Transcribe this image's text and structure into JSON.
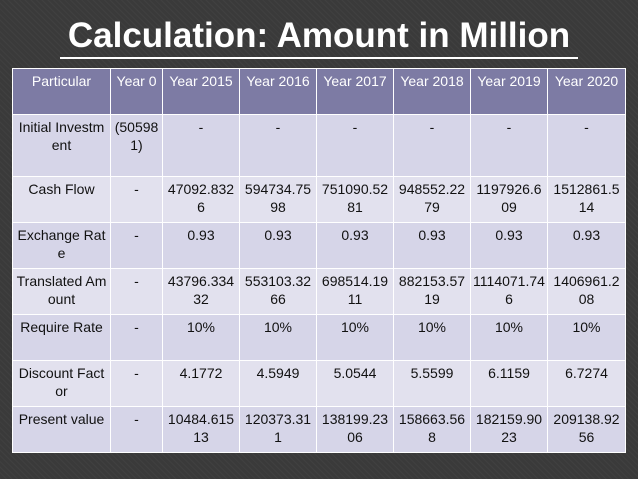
{
  "title": "Calculation: Amount in Million",
  "table": {
    "headers": [
      "Particular",
      "Year 0",
      "Year 2015",
      "Year 2016",
      "Year 2017",
      "Year 2018",
      "Year 2019",
      "Year 2020"
    ],
    "rows": [
      [
        "Initial Investment",
        "(505981)",
        "-",
        "-",
        "-",
        "-",
        "-",
        "-"
      ],
      [
        "Cash Flow",
        "-",
        "47092.8326",
        "594734.7598",
        "751090.5281",
        "948552.2279",
        "1197926.609",
        "1512861.514"
      ],
      [
        "Exchange Rate",
        "-",
        "0.93",
        "0.93",
        "0.93",
        "0.93",
        "0.93",
        "0.93"
      ],
      [
        "Translated Amount",
        "-",
        "43796.33432",
        "553103.3266",
        "698514.1911",
        "882153.5719",
        "1114071.746",
        "1406961.208"
      ],
      [
        "Require Rate",
        "-",
        "10%",
        "10%",
        "10%",
        "10%",
        "10%",
        "10%"
      ],
      [
        "Discount Factor",
        "-",
        "4.1772",
        "4.5949",
        "5.0544",
        "5.5599",
        "6.1159",
        "6.7274"
      ],
      [
        "Present value",
        "-",
        "10484.61513",
        "120373.311",
        "138199.2306",
        "158663.568",
        "182159.9023",
        "209138.9256"
      ]
    ]
  }
}
